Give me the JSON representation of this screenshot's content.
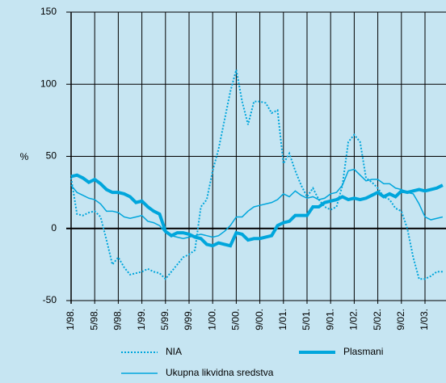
{
  "chart_data": {
    "type": "line",
    "ylabel": "%",
    "categories": [
      "1/98.",
      null,
      null,
      null,
      "5/98.",
      null,
      null,
      null,
      "9/98.",
      null,
      null,
      null,
      "1/99.",
      null,
      null,
      null,
      "5/99.",
      null,
      null,
      null,
      "9/99.",
      null,
      null,
      null,
      "1/00.",
      null,
      null,
      null,
      "5/00.",
      null,
      null,
      null,
      "9/00.",
      null,
      null,
      null,
      "1/01.",
      null,
      null,
      null,
      "5/01.",
      null,
      null,
      null,
      "9/01.",
      null,
      null,
      null,
      "1/02.",
      null,
      null,
      null,
      "5/02.",
      null,
      null,
      null,
      "9/02.",
      null,
      null,
      null,
      "1/03.",
      null,
      null,
      null
    ],
    "series": [
      {
        "name": "NIA",
        "color": "#00a6dc",
        "width": 2,
        "dash": true,
        "values": [
          35,
          10,
          9,
          11,
          12,
          8,
          -8,
          -25,
          -20,
          -27,
          -32,
          -31,
          -30,
          -28,
          -30,
          -31,
          -35,
          -30,
          -25,
          -20,
          -18,
          -15,
          15,
          20,
          40,
          55,
          75,
          95,
          110,
          88,
          72,
          88,
          88,
          87,
          80,
          82,
          45,
          52,
          40,
          30,
          22,
          28,
          20,
          15,
          13,
          15,
          30,
          60,
          65,
          60,
          35,
          32,
          28,
          22,
          20,
          14,
          12,
          0,
          -20,
          -35,
          -35,
          -33,
          -30,
          -30
        ]
      },
      {
        "name": "Plasmani",
        "color": "#00a6dc",
        "width": 4,
        "dash": false,
        "values": [
          36,
          37,
          35,
          32,
          34,
          31,
          27,
          25,
          25,
          24,
          22,
          18,
          19,
          15,
          12,
          10,
          -2,
          -5,
          -3,
          -3,
          -4,
          -6,
          -7,
          -11,
          -12,
          -10,
          -11,
          -12,
          -3,
          -4,
          -8,
          -7,
          -7,
          -6,
          -5,
          2,
          4,
          5,
          9,
          9,
          9,
          15,
          15,
          18,
          19,
          20,
          22,
          20,
          21,
          20,
          21,
          23,
          25,
          22,
          24,
          22,
          26,
          25,
          26,
          27,
          26,
          27,
          28,
          30
        ]
      },
      {
        "name": "Ukupna likvidna sredstva",
        "color": "#00a6dc",
        "width": 1.5,
        "dash": false,
        "values": [
          30,
          25,
          23,
          21,
          20,
          17,
          12,
          12,
          11,
          8,
          7,
          8,
          9,
          5,
          4,
          2,
          -3,
          -5,
          -6,
          -7,
          -6,
          -5,
          -4,
          -5,
          -6,
          -5,
          -2,
          2,
          8,
          8,
          12,
          15,
          16,
          17,
          18,
          20,
          24,
          22,
          26,
          23,
          21,
          22,
          20,
          21,
          24,
          25,
          30,
          40,
          41,
          37,
          33,
          34,
          34,
          31,
          31,
          28,
          27,
          25,
          24,
          17,
          8,
          6,
          7,
          8
        ]
      }
    ],
    "ylim": [
      -50,
      150
    ],
    "yticks": [
      -50,
      0,
      50,
      100,
      150
    ],
    "grid": true
  }
}
